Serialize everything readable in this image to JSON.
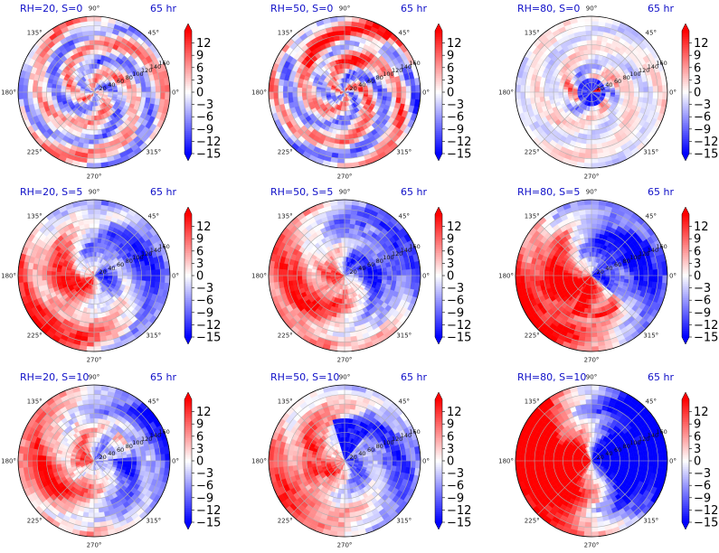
{
  "chart_data": {
    "type": "heatmap",
    "projection": "polar",
    "colormap": "bwr",
    "colorbar": {
      "ticks": [
        "12",
        "9",
        "6",
        "3",
        "0",
        "−3",
        "−6",
        "−9",
        "−12",
        "−15"
      ],
      "tick_values": [
        12,
        9,
        6,
        3,
        0,
        -3,
        -6,
        -9,
        -12,
        -15
      ],
      "vmin": -15,
      "vmax": 15,
      "extend": "both"
    },
    "angle_ticks": [
      "0°",
      "45°",
      "90°",
      "135°",
      "180°",
      "225°",
      "270°",
      "315°"
    ],
    "radial_ticks": [
      "20",
      "40",
      "60",
      "80",
      "100",
      "120",
      "140",
      "160"
    ],
    "grid": true,
    "panels": [
      {
        "title": "RH=20, S=0",
        "time": "65 hr",
        "rh": 20,
        "shear": 0
      },
      {
        "title": "RH=50, S=0",
        "time": "65 hr",
        "rh": 50,
        "shear": 0
      },
      {
        "title": "RH=80, S=0",
        "time": "65 hr",
        "rh": 80,
        "shear": 0
      },
      {
        "title": "RH=20, S=5",
        "time": "65 hr",
        "rh": 20,
        "shear": 5
      },
      {
        "title": "RH=50, S=5",
        "time": "65 hr",
        "rh": 50,
        "shear": 5
      },
      {
        "title": "RH=80, S=5",
        "time": "65 hr",
        "rh": 80,
        "shear": 5
      },
      {
        "title": "RH=20, S=10",
        "time": "65 hr",
        "rh": 20,
        "shear": 10
      },
      {
        "title": "RH=50, S=10",
        "time": "65 hr",
        "rh": 50,
        "shear": 10
      },
      {
        "title": "RH=80, S=10",
        "time": "65 hr",
        "rh": 80,
        "shear": 10
      }
    ]
  }
}
